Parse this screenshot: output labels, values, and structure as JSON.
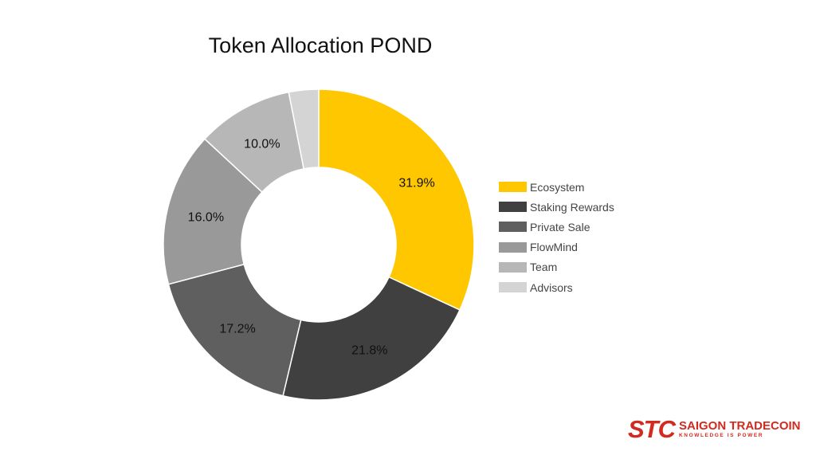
{
  "chart_data": {
    "type": "pie",
    "title": "Token Allocation POND",
    "donut": true,
    "slices": [
      {
        "label": "Ecosystem",
        "value": 31.9,
        "value_label": "31.9%",
        "color": "#ffc700"
      },
      {
        "label": "Staking Rewards",
        "value": 21.8,
        "value_label": "21.8%",
        "color": "#404040"
      },
      {
        "label": "Private Sale",
        "value": 17.2,
        "value_label": "17.2%",
        "color": "#5f5f5f"
      },
      {
        "label": "FlowMind",
        "value": 16.0,
        "value_label": "16.0%",
        "color": "#999999"
      },
      {
        "label": "Team",
        "value": 10.0,
        "value_label": "10.0%",
        "color": "#b7b7b7"
      },
      {
        "label": "Advisors",
        "value": 3.1,
        "value_label": "",
        "color": "#d4d4d4"
      }
    ],
    "legend_position": "right"
  },
  "logo": {
    "mark": "STC",
    "name": "SAIGON TRADECOIN",
    "tagline": "KNOWLEDGE IS POWER"
  }
}
